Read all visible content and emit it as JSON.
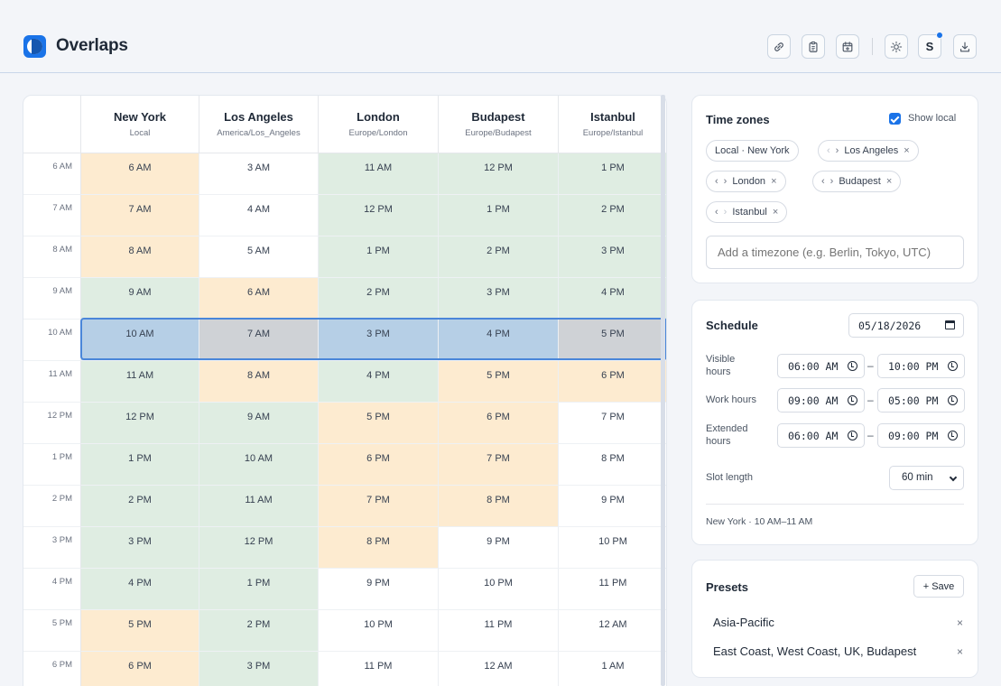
{
  "app": {
    "title": "Overlaps",
    "actions": [
      {
        "icon": "link-icon"
      },
      {
        "icon": "clipboard-icon"
      },
      {
        "icon": "calendar-add-icon"
      },
      {
        "icon": "sun-icon"
      },
      {
        "icon": "avatar",
        "label": "S"
      },
      {
        "icon": "download-icon"
      }
    ]
  },
  "grid": {
    "columns": [
      {
        "city": "New York",
        "tz": "Local"
      },
      {
        "city": "Los Angeles",
        "tz": "America/Los_Angeles"
      },
      {
        "city": "London",
        "tz": "Europe/London"
      },
      {
        "city": "Budapest",
        "tz": "Europe/Budapest"
      },
      {
        "city": "Istanbul",
        "tz": "Europe/Istanbul"
      }
    ],
    "rows": [
      {
        "label": "6 AM",
        "cells": [
          "6 AM",
          "3 AM",
          "11 AM",
          "12 PM",
          "1 PM"
        ],
        "status": [
          "ext",
          "off",
          "work",
          "work",
          "work"
        ]
      },
      {
        "label": "7 AM",
        "cells": [
          "7 AM",
          "4 AM",
          "12 PM",
          "1 PM",
          "2 PM"
        ],
        "status": [
          "ext",
          "off",
          "work",
          "work",
          "work"
        ]
      },
      {
        "label": "8 AM",
        "cells": [
          "8 AM",
          "5 AM",
          "1 PM",
          "2 PM",
          "3 PM"
        ],
        "status": [
          "ext",
          "off",
          "work",
          "work",
          "work"
        ]
      },
      {
        "label": "9 AM",
        "cells": [
          "9 AM",
          "6 AM",
          "2 PM",
          "3 PM",
          "4 PM"
        ],
        "status": [
          "work",
          "ext",
          "work",
          "work",
          "work"
        ]
      },
      {
        "label": "10 AM",
        "cells": [
          "10 AM",
          "7 AM",
          "3 PM",
          "4 PM",
          "5 PM"
        ],
        "status": [
          "sel",
          "sel-off",
          "sel",
          "sel",
          "sel-off"
        ],
        "selected": true
      },
      {
        "label": "11 AM",
        "cells": [
          "11 AM",
          "8 AM",
          "4 PM",
          "5 PM",
          "6 PM"
        ],
        "status": [
          "work",
          "ext",
          "work",
          "ext",
          "ext"
        ]
      },
      {
        "label": "12 PM",
        "cells": [
          "12 PM",
          "9 AM",
          "5 PM",
          "6 PM",
          "7 PM"
        ],
        "status": [
          "work",
          "work",
          "ext",
          "ext",
          "off"
        ]
      },
      {
        "label": "1 PM",
        "cells": [
          "1 PM",
          "10 AM",
          "6 PM",
          "7 PM",
          "8 PM"
        ],
        "status": [
          "work",
          "work",
          "ext",
          "ext",
          "off"
        ]
      },
      {
        "label": "2 PM",
        "cells": [
          "2 PM",
          "11 AM",
          "7 PM",
          "8 PM",
          "9 PM"
        ],
        "status": [
          "work",
          "work",
          "ext",
          "ext",
          "off"
        ]
      },
      {
        "label": "3 PM",
        "cells": [
          "3 PM",
          "12 PM",
          "8 PM",
          "9 PM",
          "10 PM"
        ],
        "status": [
          "work",
          "work",
          "ext",
          "off",
          "off"
        ]
      },
      {
        "label": "4 PM",
        "cells": [
          "4 PM",
          "1 PM",
          "9 PM",
          "10 PM",
          "11 PM"
        ],
        "status": [
          "work",
          "work",
          "off",
          "off",
          "off"
        ]
      },
      {
        "label": "5 PM",
        "cells": [
          "5 PM",
          "2 PM",
          "10 PM",
          "11 PM",
          "12 AM"
        ],
        "status": [
          "ext",
          "work",
          "off",
          "off",
          "off"
        ]
      },
      {
        "label": "6 PM",
        "cells": [
          "6 PM",
          "3 PM",
          "11 PM",
          "12 AM",
          "1 AM"
        ],
        "status": [
          "ext",
          "work",
          "off",
          "off",
          "off"
        ]
      }
    ]
  },
  "timezones": {
    "title": "Time zones",
    "show_local_label": "Show local",
    "show_local": true,
    "chips": [
      {
        "label": "Local · New York",
        "removable": false,
        "arrows": false
      },
      {
        "label": "Los Angeles",
        "removable": true,
        "arrows": true,
        "left_disabled": true
      },
      {
        "label": "London",
        "removable": true,
        "arrows": true
      },
      {
        "label": "Budapest",
        "removable": true,
        "arrows": true
      },
      {
        "label": "Istanbul",
        "removable": true,
        "arrows": true,
        "right_disabled": true
      }
    ],
    "add_placeholder": "Add a timezone (e.g. Berlin, Tokyo, UTC)",
    "arrow_left": "‹",
    "arrow_right": "›",
    "remove": "×"
  },
  "schedule": {
    "title": "Schedule",
    "date": "05/18/2026",
    "visible_label": "Visible hours",
    "visible_from": "06:00 AM",
    "visible_to": "10:00 PM",
    "work_label": "Work hours",
    "work_from": "09:00 AM",
    "work_to": "05:00 PM",
    "extended_label": "Extended hours",
    "extended_from": "06:00 AM",
    "extended_to": "09:00 PM",
    "dash": "–",
    "slot_label": "Slot length",
    "slot_value": "60 min",
    "summary": "New York · 10 AM–11 AM"
  },
  "presets": {
    "title": "Presets",
    "save_label": "+ Save",
    "items": [
      {
        "label": "Asia-Pacific"
      },
      {
        "label": "East Coast, West Coast, UK, Budapest"
      }
    ],
    "remove": "×"
  },
  "colors": {
    "accent": "#1a73e8",
    "work": "#dfede2",
    "extended": "#fdebd0",
    "selected": "#b6cfe6",
    "selected_off": "#cfd2d6"
  }
}
